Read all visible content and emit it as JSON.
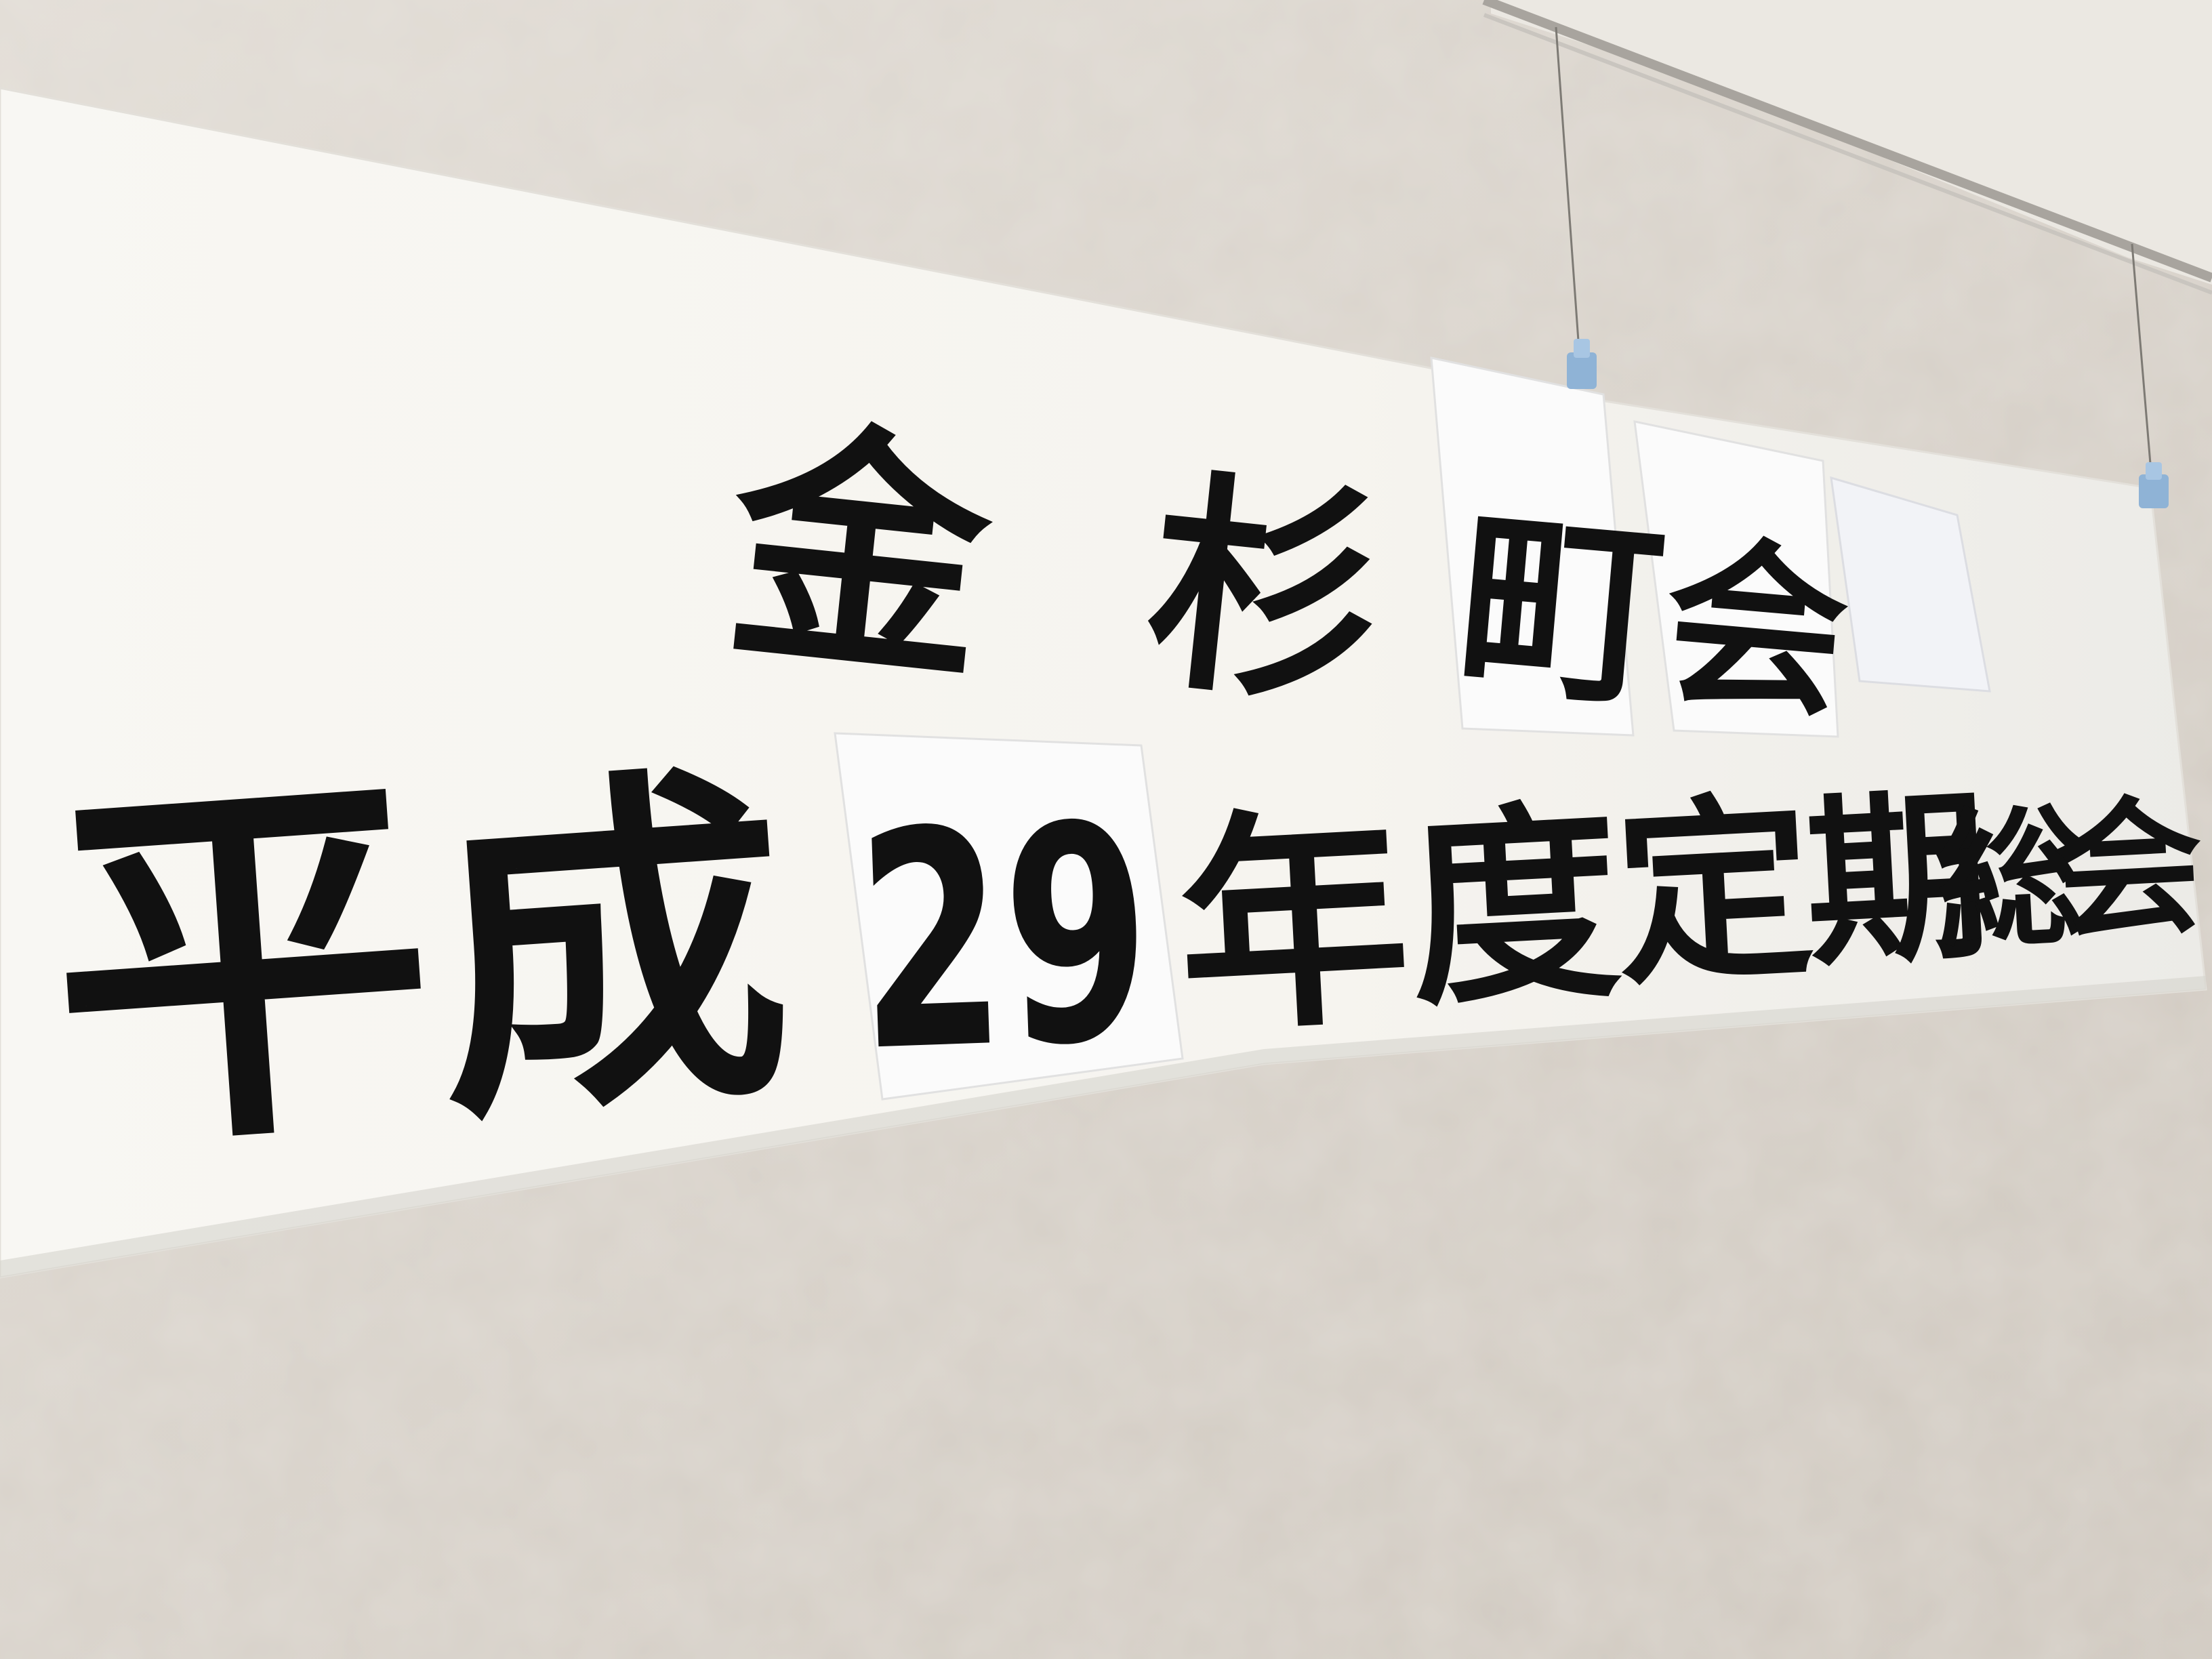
{
  "banner": {
    "line1": [
      "金",
      "杉",
      "町",
      "会"
    ],
    "line2": [
      "平",
      "成",
      "29",
      "年",
      "度",
      "定",
      "期",
      "総",
      "会"
    ]
  },
  "colors": {
    "wall": "#d9d3cb",
    "wall_light": "#e4dfd8",
    "banner_paper": "#f7f5f1",
    "patch_paper": "#fbfbfb",
    "ink": "#111111",
    "rail": "#a8a49e",
    "clip": "#8fb3d6"
  },
  "icons": {
    "clip_left": "clothespin-icon",
    "clip_right": "clothespin-icon"
  }
}
